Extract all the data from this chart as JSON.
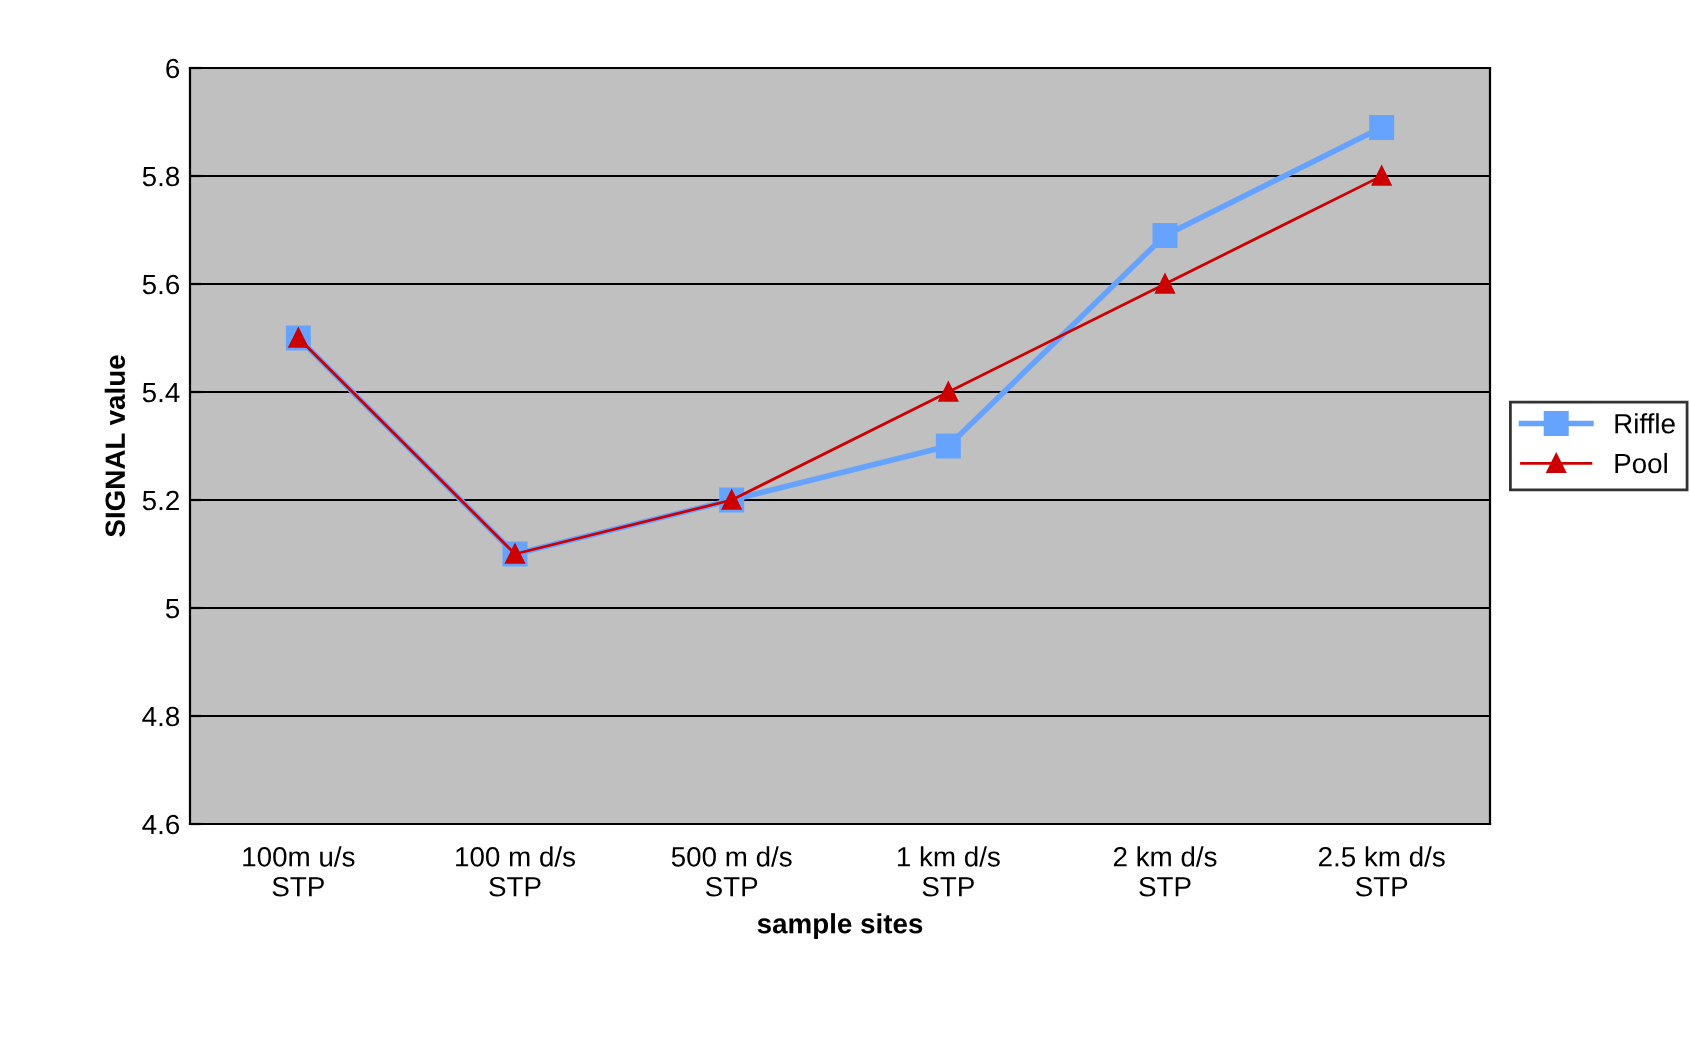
{
  "chart_data": {
    "type": "line",
    "xlabel": "sample sites",
    "ylabel": "SIGNAL value",
    "categories": [
      "100m u/s\nSTP",
      "100 m d/s\nSTP",
      "500 m d/s\nSTP",
      "1 km d/s\nSTP",
      "2 km d/s\nSTP",
      "2.5 km d/s\nSTP"
    ],
    "series": [
      {
        "name": "Riffle",
        "color": "#66a3ff",
        "marker": "square",
        "values": [
          5.5,
          5.1,
          5.2,
          5.3,
          5.69,
          5.89
        ]
      },
      {
        "name": "Pool",
        "color": "#cc0000",
        "marker": "triangle",
        "values": [
          5.5,
          5.1,
          5.2,
          5.4,
          5.6,
          5.8
        ]
      }
    ],
    "ylim": [
      4.6,
      6
    ],
    "yticks": [
      4.6,
      4.8,
      5,
      5.2,
      5.4,
      5.6,
      5.8,
      6
    ],
    "grid": "y",
    "legend": "right"
  }
}
